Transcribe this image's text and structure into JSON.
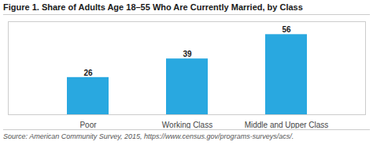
{
  "chart_data": {
    "type": "bar",
    "title": "Figure 1. Share of Adults Age 18–55 Who Are Currently Married, by Class",
    "caption": "Source: American Community Survey, 2015, https://www.census.gov/programs-surveys/acs/.",
    "categories": [
      "Poor",
      "Working Class",
      "Middle and Upper Class"
    ],
    "values": [
      26,
      39,
      56
    ],
    "color": "#29a8e0",
    "ylim": [
      0,
      65
    ],
    "grid": false,
    "data_labels": true,
    "tick_labels": "x"
  }
}
